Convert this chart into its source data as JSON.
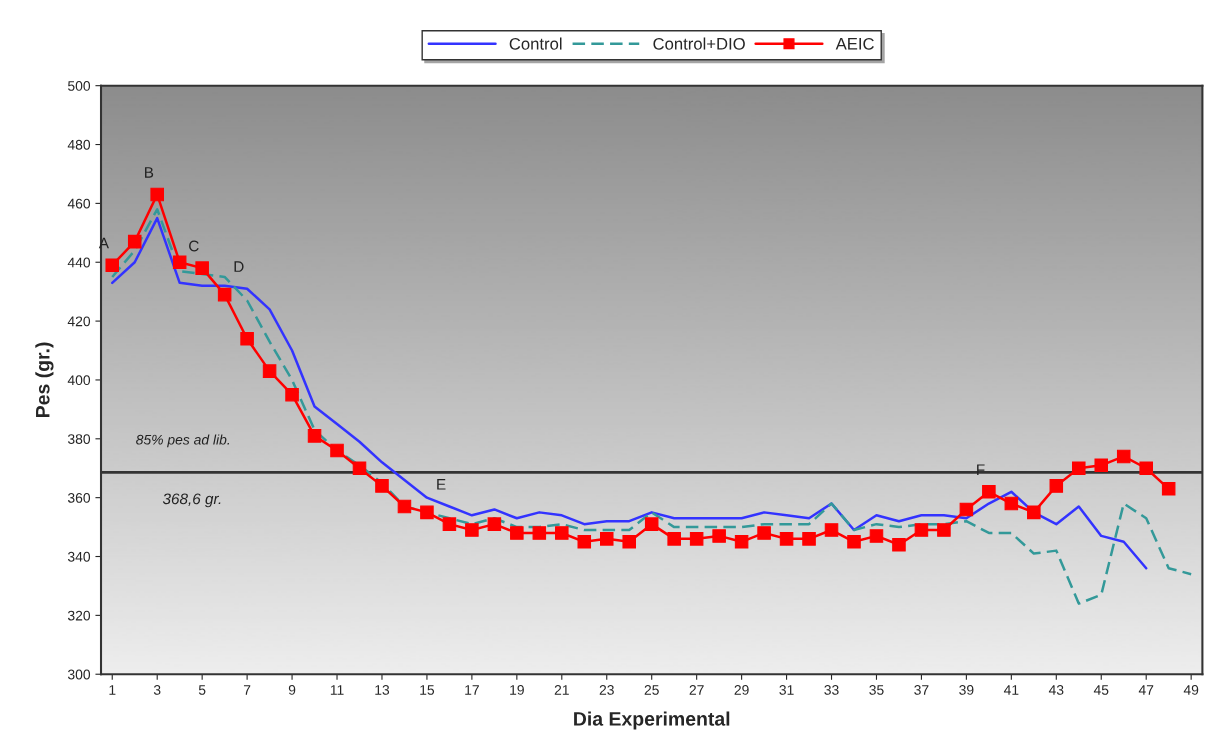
{
  "chart_data": {
    "type": "line",
    "xlabel": "Dia Experimental",
    "ylabel": "Pes (gr.)",
    "x": [
      1,
      2,
      3,
      4,
      5,
      6,
      7,
      8,
      9,
      10,
      11,
      12,
      13,
      14,
      15,
      16,
      17,
      18,
      19,
      20,
      21,
      22,
      23,
      24,
      25,
      26,
      27,
      28,
      29,
      30,
      31,
      32,
      33,
      34,
      35,
      36,
      37,
      38,
      39,
      40,
      41,
      42,
      43,
      44,
      45,
      46,
      47,
      48,
      49
    ],
    "xlim": [
      0.5,
      49.5
    ],
    "xticks": [
      1,
      3,
      5,
      7,
      9,
      11,
      13,
      15,
      17,
      19,
      21,
      23,
      25,
      27,
      29,
      31,
      33,
      35,
      37,
      39,
      41,
      43,
      45,
      47,
      49
    ],
    "ylim": [
      300,
      500
    ],
    "yticks": [
      300,
      320,
      340,
      360,
      380,
      400,
      420,
      440,
      460,
      480,
      500
    ],
    "grid": false,
    "legend": "top",
    "series": [
      {
        "name": "Control",
        "color": "#3333ff",
        "line_style": "solid",
        "marker": "none",
        "values": [
          433,
          440,
          455,
          433,
          432,
          432,
          431,
          424,
          410,
          391,
          385,
          379,
          372,
          366,
          360,
          357,
          354,
          356,
          353,
          355,
          354,
          351,
          352,
          352,
          355,
          353,
          353,
          353,
          353,
          355,
          354,
          353,
          358,
          349,
          354,
          352,
          354,
          354,
          353,
          358,
          362,
          355,
          351,
          357,
          347,
          345,
          336,
          null,
          null
        ]
      },
      {
        "name": "Control+DIO",
        "color": "#339999",
        "line_style": "dashed",
        "marker": "none",
        "values": [
          435,
          444,
          458,
          437,
          436,
          435,
          427,
          413,
          400,
          383,
          376,
          371,
          365,
          357,
          355,
          353,
          351,
          353,
          350,
          350,
          351,
          349,
          349,
          349,
          355,
          350,
          350,
          350,
          350,
          351,
          351,
          351,
          358,
          349,
          351,
          350,
          351,
          351,
          352,
          348,
          348,
          341,
          342,
          324,
          327,
          358,
          353,
          336,
          334
        ]
      },
      {
        "name": "AEIC",
        "color": "#ff0000",
        "line_style": "solid",
        "marker": "square",
        "values": [
          439,
          447,
          463,
          440,
          438,
          429,
          414,
          403,
          395,
          381,
          376,
          370,
          364,
          357,
          355,
          351,
          349,
          351,
          348,
          348,
          348,
          345,
          346,
          345,
          351,
          346,
          346,
          347,
          345,
          348,
          346,
          346,
          349,
          345,
          347,
          344,
          349,
          349,
          356,
          362,
          358,
          355,
          364,
          370,
          371,
          374,
          370,
          363,
          null
        ]
      }
    ],
    "ref_lines": [
      {
        "axis": "y",
        "value": 368.6,
        "label": "85% pes ad lib.",
        "color": "#333333",
        "line_style": "solid"
      }
    ],
    "annotations": [
      {
        "text": "A",
        "x": 1,
        "y": 439
      },
      {
        "text": "B",
        "x": 3,
        "y": 463
      },
      {
        "text": "C",
        "x": 5,
        "y": 438
      },
      {
        "text": "D",
        "x": 7,
        "y": 431
      },
      {
        "text": "E",
        "x": 16,
        "y": 357
      },
      {
        "text": "F",
        "x": 40,
        "y": 362
      },
      {
        "text": "368,6 gr.",
        "x": 2,
        "y": 368.6
      }
    ]
  }
}
